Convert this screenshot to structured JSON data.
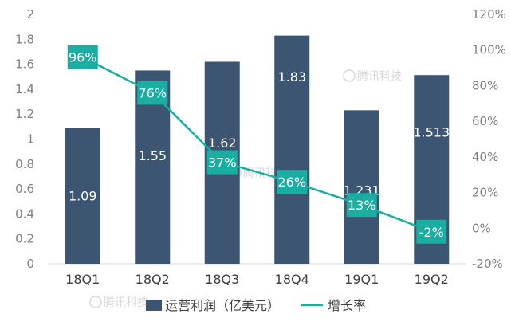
{
  "chart_data": {
    "type": "bar",
    "categories": [
      "18Q1",
      "18Q2",
      "18Q3",
      "18Q4",
      "19Q1",
      "19Q2"
    ],
    "series": [
      {
        "name": "运营利润（亿美元）",
        "type": "bar",
        "axis": "left",
        "values": [
          1.09,
          1.55,
          1.62,
          1.83,
          1.231,
          1.513
        ],
        "labels": [
          "1.09",
          "1.55",
          "1.62",
          "1.83",
          "1.231",
          "1.513"
        ],
        "color": "#3b5572"
      },
      {
        "name": "增长率",
        "type": "line",
        "axis": "right",
        "values": [
          96,
          76,
          37,
          26,
          13,
          -2
        ],
        "labels": [
          "96%",
          "76%",
          "37%",
          "26%",
          "13%",
          "-2%"
        ],
        "color": "#1aaea2"
      }
    ],
    "y_left": {
      "ylim": [
        0,
        2
      ],
      "ticks": [
        0,
        0.2,
        0.4,
        0.6,
        0.8,
        1,
        1.2,
        1.4,
        1.6,
        1.8,
        2
      ],
      "tick_labels": [
        "0",
        "0.2",
        "0.4",
        "0.6",
        "0.8",
        "1",
        "1.2",
        "1.4",
        "1.6",
        "1.8",
        "2"
      ]
    },
    "y_right": {
      "ylim": [
        -20,
        120
      ],
      "ticks": [
        -20,
        0,
        20,
        40,
        60,
        80,
        100,
        120
      ],
      "tick_labels": [
        "-20%",
        "0%",
        "20%",
        "40%",
        "60%",
        "80%",
        "100%",
        "120%"
      ]
    },
    "legend_position": "bottom",
    "grid": false
  },
  "watermark": "腾讯科技"
}
